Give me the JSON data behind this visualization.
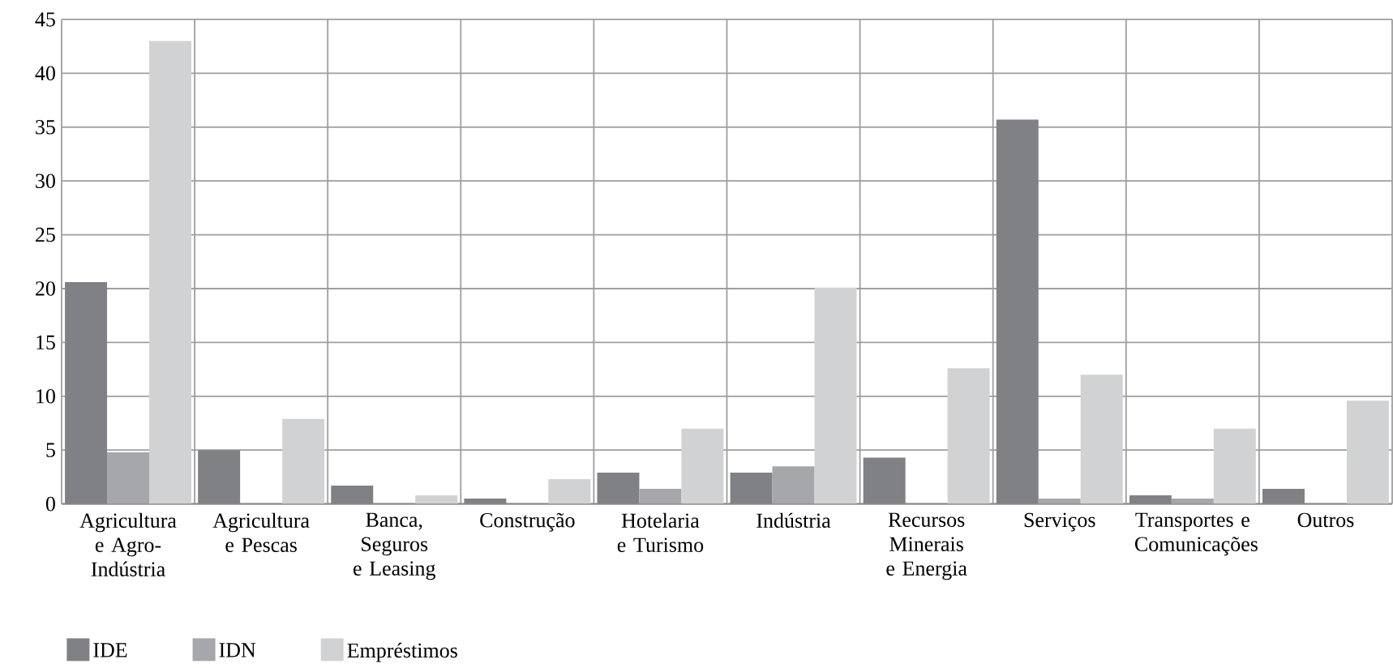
{
  "chart_data": {
    "type": "bar",
    "categories": [
      "Agricultura e Agro-Indústria",
      "Agricultura e Pescas",
      "Banca, Seguros e Leasing",
      "Construção",
      "Hotelaria e Turismo",
      "Indústria",
      "Recursos Minerais e Energia",
      "Serviços",
      "Transportes e Comunicações",
      "Outros"
    ],
    "series": [
      {
        "name": "IDE",
        "color": "#808184",
        "values": [
          20.6,
          5.0,
          1.7,
          0.5,
          2.9,
          2.9,
          4.3,
          35.7,
          0.8,
          1.4
        ]
      },
      {
        "name": "IDN",
        "color": "#a6a7aa",
        "values": [
          4.8,
          0,
          0,
          0,
          1.4,
          3.5,
          0,
          0.5,
          0.5,
          0
        ]
      },
      {
        "name": "Empréstimos",
        "color": "#d1d2d4",
        "values": [
          43,
          7.9,
          0.8,
          2.3,
          7.0,
          20.1,
          12.6,
          12.0,
          7.0,
          9.6
        ]
      }
    ],
    "ylim": [
      0,
      45
    ],
    "yticks": [
      0,
      5,
      10,
      15,
      20,
      25,
      30,
      35,
      40,
      45
    ],
    "grid": true,
    "legend": "bottom left"
  }
}
